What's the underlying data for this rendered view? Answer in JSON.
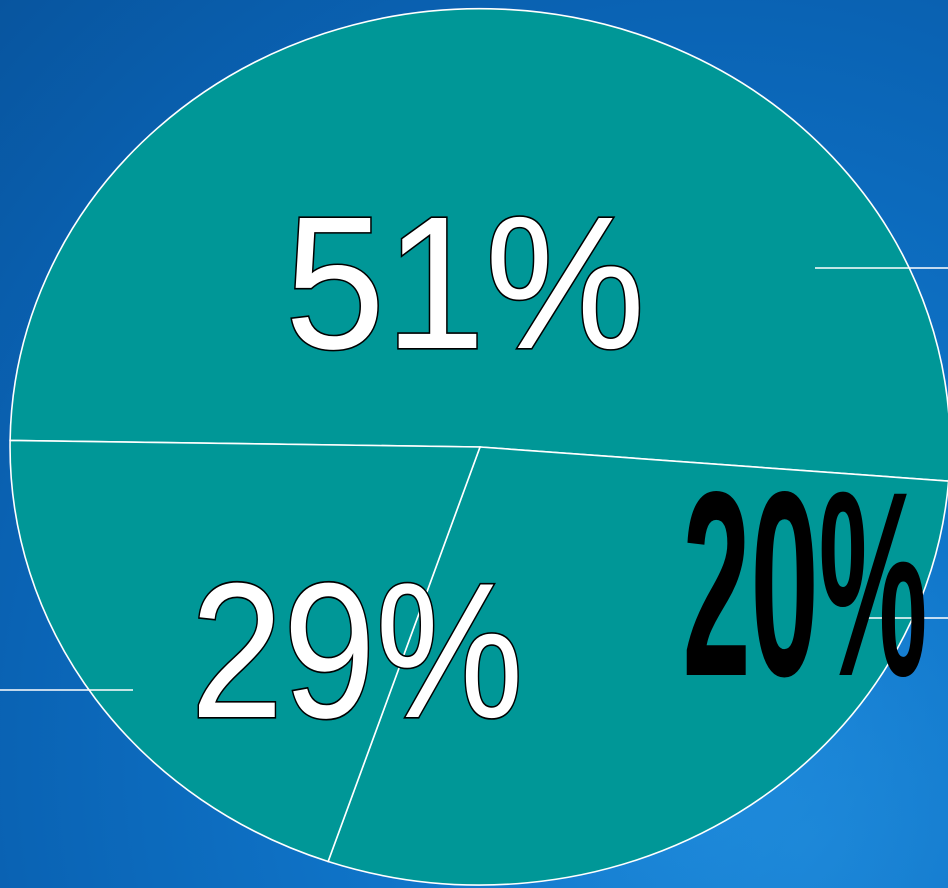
{
  "colors": {
    "background": "#0a63b4",
    "pie_fill": "#009797",
    "pie_stroke": "#ffffff",
    "label_outline_fill": "#ffffff",
    "label_solid_fill": "#000000"
  },
  "chart_data": {
    "type": "pie",
    "values": [
      51,
      29,
      20
    ],
    "labels": [
      "51%",
      "29%",
      "20%"
    ],
    "title": "",
    "legend": "none"
  }
}
